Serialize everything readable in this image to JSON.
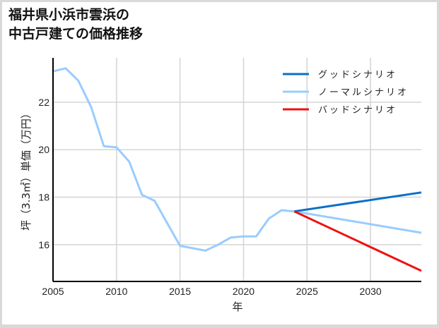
{
  "title": "福井県小浜市雲浜の\n中古戸建ての価格推移",
  "chart_data": {
    "type": "line",
    "title": "福井県小浜市雲浜の中古戸建ての価格推移",
    "xlabel": "年",
    "ylabel": "坪（3.3㎡）単価（万円）",
    "xlim": [
      2005,
      2034
    ],
    "ylim": [
      14.45,
      23.87
    ],
    "xticks": [
      2005,
      2010,
      2015,
      2020,
      2025,
      2030
    ],
    "yticks": [
      16,
      18,
      20,
      22
    ],
    "grid": true,
    "legend_position": "upper right",
    "series": [
      {
        "name": "グッドシナリオ",
        "color": "#0a6fc7",
        "x": [
          2024,
          2034
        ],
        "values": [
          17.4,
          18.2
        ]
      },
      {
        "name": "ノーマルシナリオ",
        "color": "#99ccff",
        "x": [
          2005,
          2006,
          2007,
          2008,
          2009,
          2010,
          2011,
          2012,
          2013,
          2014,
          2015,
          2016,
          2017,
          2018,
          2019,
          2020,
          2021,
          2022,
          2023,
          2024,
          2034
        ],
        "values": [
          23.3,
          23.43,
          22.9,
          21.8,
          20.15,
          20.1,
          19.5,
          18.1,
          17.85,
          16.9,
          15.95,
          15.85,
          15.75,
          16.0,
          16.3,
          16.35,
          16.35,
          17.1,
          17.45,
          17.4,
          16.5
        ]
      },
      {
        "name": "バッドシナリオ",
        "color": "#ee1111",
        "x": [
          2024,
          2034
        ],
        "values": [
          17.4,
          14.9
        ]
      }
    ]
  }
}
